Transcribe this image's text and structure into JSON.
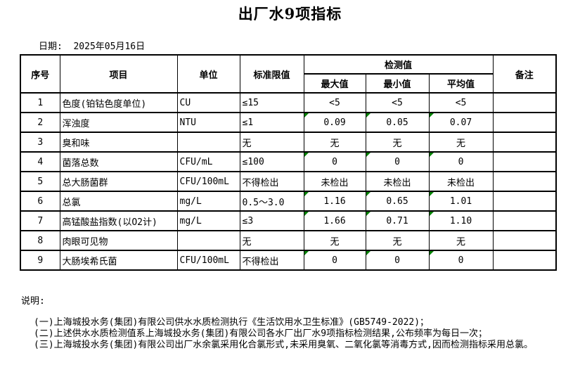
{
  "title": "出厂水9项指标",
  "date_label": "日期:  2025年05月16日",
  "table": {
    "headers": {
      "index": "序号",
      "item": "项目",
      "unit": "单位",
      "limit": "标准限值",
      "detection": "检测值",
      "max": "最大值",
      "min": "最小值",
      "avg": "平均值",
      "remark": "备注"
    },
    "flag_color": "#008000",
    "rows": [
      {
        "index": "1",
        "item": "色度(铂钴色度单位)",
        "unit": "CU",
        "limit": "≤15",
        "max": "<5",
        "min": "<5",
        "avg": "<5",
        "remark": "",
        "flagged": false
      },
      {
        "index": "2",
        "item": "浑浊度",
        "unit": "NTU",
        "limit": "≤1",
        "max": "0.09",
        "min": "0.05",
        "avg": "0.07",
        "remark": "",
        "flagged": true
      },
      {
        "index": "3",
        "item": "臭和味",
        "unit": "",
        "limit": "无",
        "max": "无",
        "min": "无",
        "avg": "无",
        "remark": "",
        "flagged": false
      },
      {
        "index": "4",
        "item": "菌落总数",
        "unit": "CFU/mL",
        "limit": "≤100",
        "max": "0",
        "min": "0",
        "avg": "0",
        "remark": "",
        "flagged": true
      },
      {
        "index": "5",
        "item": "总大肠菌群",
        "unit": "CFU/100mL",
        "limit": "不得检出",
        "max": "未检出",
        "min": "未检出",
        "avg": "未检出",
        "remark": "",
        "flagged": false
      },
      {
        "index": "6",
        "item": "总氯",
        "unit": "mg/L",
        "limit": "0.5～3.0",
        "max": "1.16",
        "min": "0.65",
        "avg": "1.01",
        "remark": "",
        "flagged": true
      },
      {
        "index": "7",
        "item": "高锰酸盐指数(以O2计)",
        "unit": "mg/L",
        "limit": "≤3",
        "max": "1.66",
        "min": "0.71",
        "avg": "1.10",
        "remark": "",
        "flagged": true
      },
      {
        "index": "8",
        "item": "肉眼可见物",
        "unit": "",
        "limit": "无",
        "max": "无",
        "min": "无",
        "avg": "无",
        "remark": "",
        "flagged": false
      },
      {
        "index": "9",
        "item": "大肠埃希氏菌",
        "unit": "CFU/100mL",
        "limit": "不得检出",
        "max": "0",
        "min": "0",
        "avg": "0",
        "remark": "",
        "flagged": true
      }
    ]
  },
  "notes": {
    "label": "说明:",
    "items": [
      "(一)上海城投水务(集团)有限公司供水水质检测执行《生活饮用水卫生标准》(GB5749-2022)；",
      "(二)上述供水水质检测值系上海城投水务(集团)有限公司各水厂出厂水9项指标检测结果,公布频率为每日一次；",
      "(三)上海城投水务(集团)有限公司出厂水余氯采用化合氯形式,未采用臭氧、二氧化氯等消毒方式,因而检测指标采用总氯。"
    ]
  }
}
